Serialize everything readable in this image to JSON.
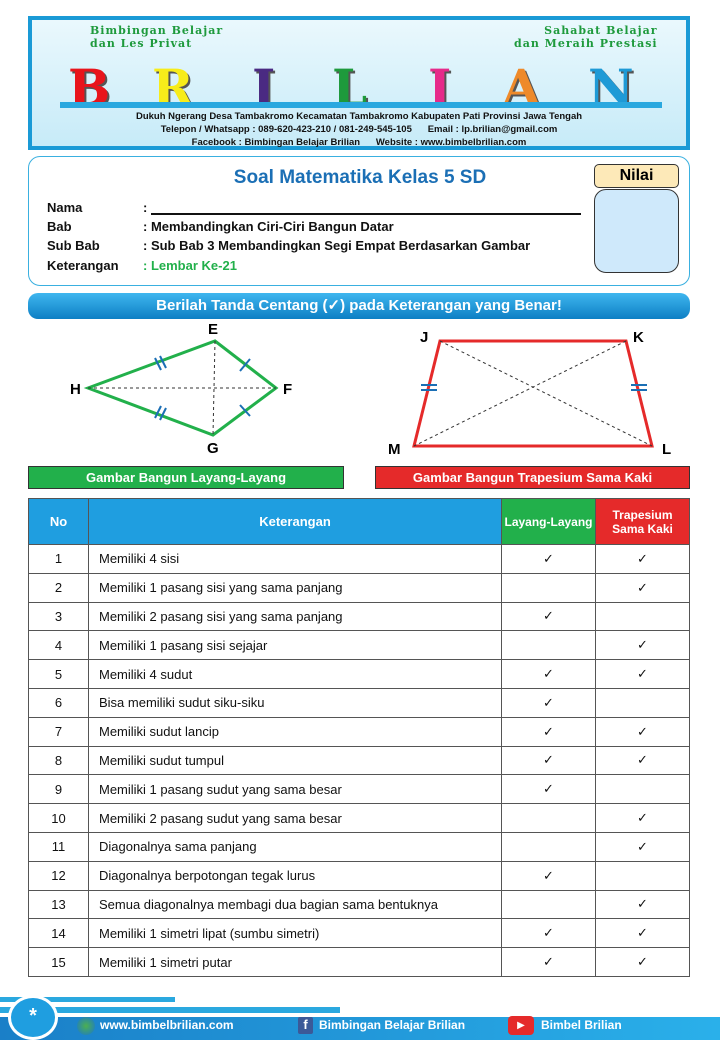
{
  "header": {
    "tagline_left": [
      "Bimbingan Belajar",
      "dan Les Privat"
    ],
    "tagline_right": [
      "Sahabat Belajar",
      "dan Meraih Prestasi"
    ],
    "logo_letters": [
      "B",
      "R",
      "I",
      "L",
      "I",
      "A",
      "N"
    ],
    "logo_colors": [
      "#e8141b",
      "#f7ec1a",
      "#4a2a82",
      "#1e9a3c",
      "#e62a8a",
      "#ee8a2a",
      "#1e9ad6"
    ],
    "address": "Dukuh Ngerang Desa Tambakromo Kecamatan Tambakromo Kabupaten Pati Provinsi Jawa Tengah",
    "contact": "Telepon / Whatsapp : 089-620-423-210 / 081-249-545-105      Email : lp.brilian@gmail.com",
    "social": "Facebook : Bimbingan Belajar Brilian      Website : www.bimbelbrilian.com"
  },
  "info": {
    "title": "Soal Matematika Kelas 5 SD",
    "fields": [
      {
        "label": "Nama",
        "value": ": "
      },
      {
        "label": "Bab",
        "value": ": Membandingkan Ciri-Ciri Bangun Datar"
      },
      {
        "label": "Sub Bab",
        "value": ": Sub Bab 3 Membandingkan Segi Empat Berdasarkan Gambar"
      },
      {
        "label": "Keterangan",
        "value": ": Lembar Ke-21"
      }
    ],
    "nilai_label": "Nilai"
  },
  "instruction": "Berilah Tanda Centang (✓) pada Keterangan yang Benar!",
  "figures": {
    "kite": {
      "labels": {
        "E": "E",
        "F": "F",
        "G": "G",
        "H": "H"
      },
      "caption": "Gambar Bangun Layang-Layang",
      "color": "#22b04b"
    },
    "trapezoid": {
      "labels": {
        "J": "J",
        "K": "K",
        "L": "L",
        "M": "M"
      },
      "caption": "Gambar Bangun Trapesium Sama Kaki",
      "color": "#e52a2a"
    }
  },
  "table": {
    "headers": {
      "no": "No",
      "desc": "Keterangan",
      "kite": "Layang-Layang",
      "trap": "Trapesium Sama Kaki"
    },
    "check": "✓",
    "rows": [
      {
        "no": "1",
        "desc": "Memiliki 4 sisi",
        "kite": "✓",
        "trap": "✓"
      },
      {
        "no": "2",
        "desc": "Memiliki 1 pasang sisi yang sama panjang",
        "kite": "",
        "trap": "✓"
      },
      {
        "no": "3",
        "desc": "Memiliki 2 pasang sisi yang sama panjang",
        "kite": "✓",
        "trap": ""
      },
      {
        "no": "4",
        "desc": "Memiliki 1 pasang sisi sejajar",
        "kite": "",
        "trap": "✓"
      },
      {
        "no": "5",
        "desc": "Memiliki 4 sudut",
        "kite": "✓",
        "trap": "✓"
      },
      {
        "no": "6",
        "desc": "Bisa memiliki sudut siku-siku",
        "kite": "✓",
        "trap": ""
      },
      {
        "no": "7",
        "desc": "Memiliki sudut lancip",
        "kite": "✓",
        "trap": "✓"
      },
      {
        "no": "8",
        "desc": "Memiliki sudut tumpul",
        "kite": "✓",
        "trap": "✓"
      },
      {
        "no": "9",
        "desc": "Memiliki 1 pasang sudut yang sama besar",
        "kite": "✓",
        "trap": ""
      },
      {
        "no": "10",
        "desc": "Memiliki 2 pasang sudut yang sama besar",
        "kite": "",
        "trap": "✓"
      },
      {
        "no": "11",
        "desc": "Diagonalnya sama panjang",
        "kite": "",
        "trap": "✓"
      },
      {
        "no": "12",
        "desc": "Diagonalnya berpotongan tegak lurus",
        "kite": "✓",
        "trap": ""
      },
      {
        "no": "13",
        "desc": "Semua diagonalnya membagi dua bagian sama bentuknya",
        "kite": "",
        "trap": "✓"
      },
      {
        "no": "14",
        "desc": "Memiliki 1 simetri lipat (sumbu simetri)",
        "kite": "✓",
        "trap": "✓"
      },
      {
        "no": "15",
        "desc": "Memiliki 1 simetri putar",
        "kite": "✓",
        "trap": "✓"
      }
    ]
  },
  "footer": {
    "badge": "*",
    "website": "www.bimbelbrilian.com",
    "facebook": "Bimbingan Belajar Brilian",
    "youtube": "Bimbel Brilian"
  }
}
